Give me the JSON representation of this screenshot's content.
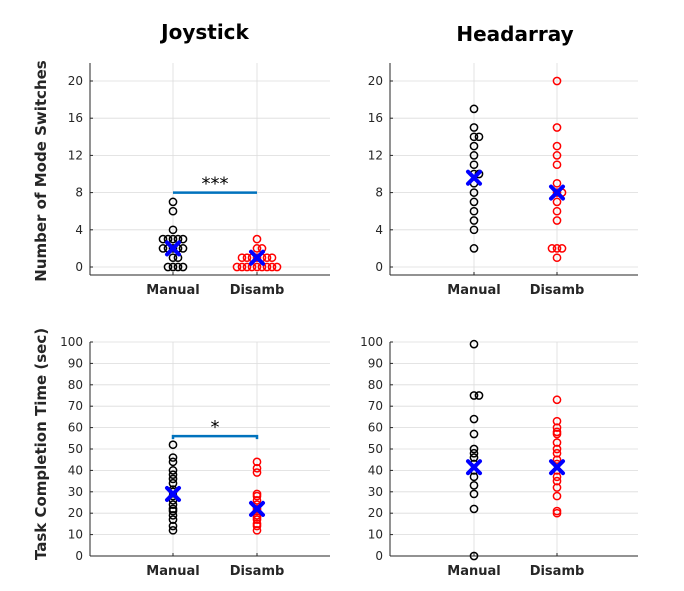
{
  "figure": {
    "column_titles": [
      "Joystick",
      "Headarray"
    ],
    "row_ylabels": [
      "Number of Mode Switches",
      "Task Completion Time (sec)"
    ]
  },
  "colors": {
    "manual": "#000000",
    "disamb": "#ff0000",
    "mean_marker": "#0000ff",
    "significance_bar": "#0072bd",
    "axis": "#262626",
    "grid": "#dcdcdc"
  },
  "chart_data": [
    {
      "type": "scatter",
      "title": "Joystick",
      "xlabel": "",
      "ylabel": "Number of Mode Switches",
      "categories": [
        "Manual",
        "Disamb"
      ],
      "ylim": [
        -1,
        22
      ],
      "yticks": [
        0,
        4,
        8,
        12,
        16,
        20
      ],
      "grid": true,
      "series": [
        {
          "category": "Manual",
          "values": [
            7,
            6,
            4,
            3,
            3,
            3,
            3,
            3,
            2,
            2,
            2,
            2,
            2,
            1,
            1,
            0,
            0,
            0,
            0
          ],
          "mean": 2
        },
        {
          "category": "Disamb",
          "values": [
            3,
            2,
            2,
            1,
            1,
            1,
            1,
            1,
            1,
            1,
            0,
            0,
            0,
            0,
            0,
            0,
            0,
            0,
            0
          ],
          "mean": 1
        }
      ],
      "significance": {
        "label": "***",
        "y": 8,
        "style": "flat"
      }
    },
    {
      "type": "scatter",
      "title": "Headarray",
      "xlabel": "",
      "ylabel": "",
      "categories": [
        "Manual",
        "Disamb"
      ],
      "ylim": [
        -1,
        22
      ],
      "yticks": [
        0,
        4,
        8,
        12,
        16,
        20
      ],
      "grid": true,
      "series": [
        {
          "category": "Manual",
          "values": [
            17,
            15,
            14,
            14,
            13,
            12,
            11,
            10,
            10,
            9,
            8,
            7,
            6,
            5,
            4,
            2
          ],
          "mean": 9.6
        },
        {
          "category": "Disamb",
          "values": [
            20,
            15,
            13,
            12,
            11,
            9,
            8,
            8,
            7,
            6,
            5,
            2,
            2,
            2,
            1
          ],
          "mean": 8
        }
      ],
      "significance": null
    },
    {
      "type": "scatter",
      "title": "",
      "xlabel": "",
      "ylabel": "Task Completion Time (sec)",
      "categories": [
        "Manual",
        "Disamb"
      ],
      "ylim": [
        0,
        100
      ],
      "yticks": [
        0,
        10,
        20,
        30,
        40,
        50,
        60,
        70,
        80,
        90,
        100
      ],
      "grid": true,
      "series": [
        {
          "category": "Manual",
          "values": [
            52,
            46,
            44,
            40,
            38,
            36,
            34,
            31,
            30,
            28,
            26,
            24,
            22,
            21,
            19,
            17,
            14,
            12
          ],
          "mean": 29
        },
        {
          "category": "Disamb",
          "values": [
            44,
            41,
            39,
            29,
            28,
            26,
            24,
            22,
            21,
            19,
            18,
            17,
            15,
            14,
            12
          ],
          "mean": 22
        }
      ],
      "significance": {
        "label": "*",
        "y": 56,
        "style": "bracket"
      }
    },
    {
      "type": "scatter",
      "title": "",
      "xlabel": "",
      "ylabel": "",
      "categories": [
        "Manual",
        "Disamb"
      ],
      "ylim": [
        0,
        100
      ],
      "yticks": [
        0,
        10,
        20,
        30,
        40,
        50,
        60,
        70,
        80,
        90,
        100
      ],
      "grid": true,
      "series": [
        {
          "category": "Manual",
          "values": [
            99,
            75,
            75,
            64,
            57,
            50,
            48,
            46,
            43,
            40,
            37,
            33,
            29,
            22,
            0
          ],
          "mean": 41.5
        },
        {
          "category": "Disamb",
          "values": [
            73,
            63,
            60,
            58,
            57,
            53,
            50,
            48,
            45,
            43,
            40,
            37,
            35,
            32,
            28,
            21,
            20
          ],
          "mean": 41.5
        }
      ],
      "significance": null
    }
  ]
}
